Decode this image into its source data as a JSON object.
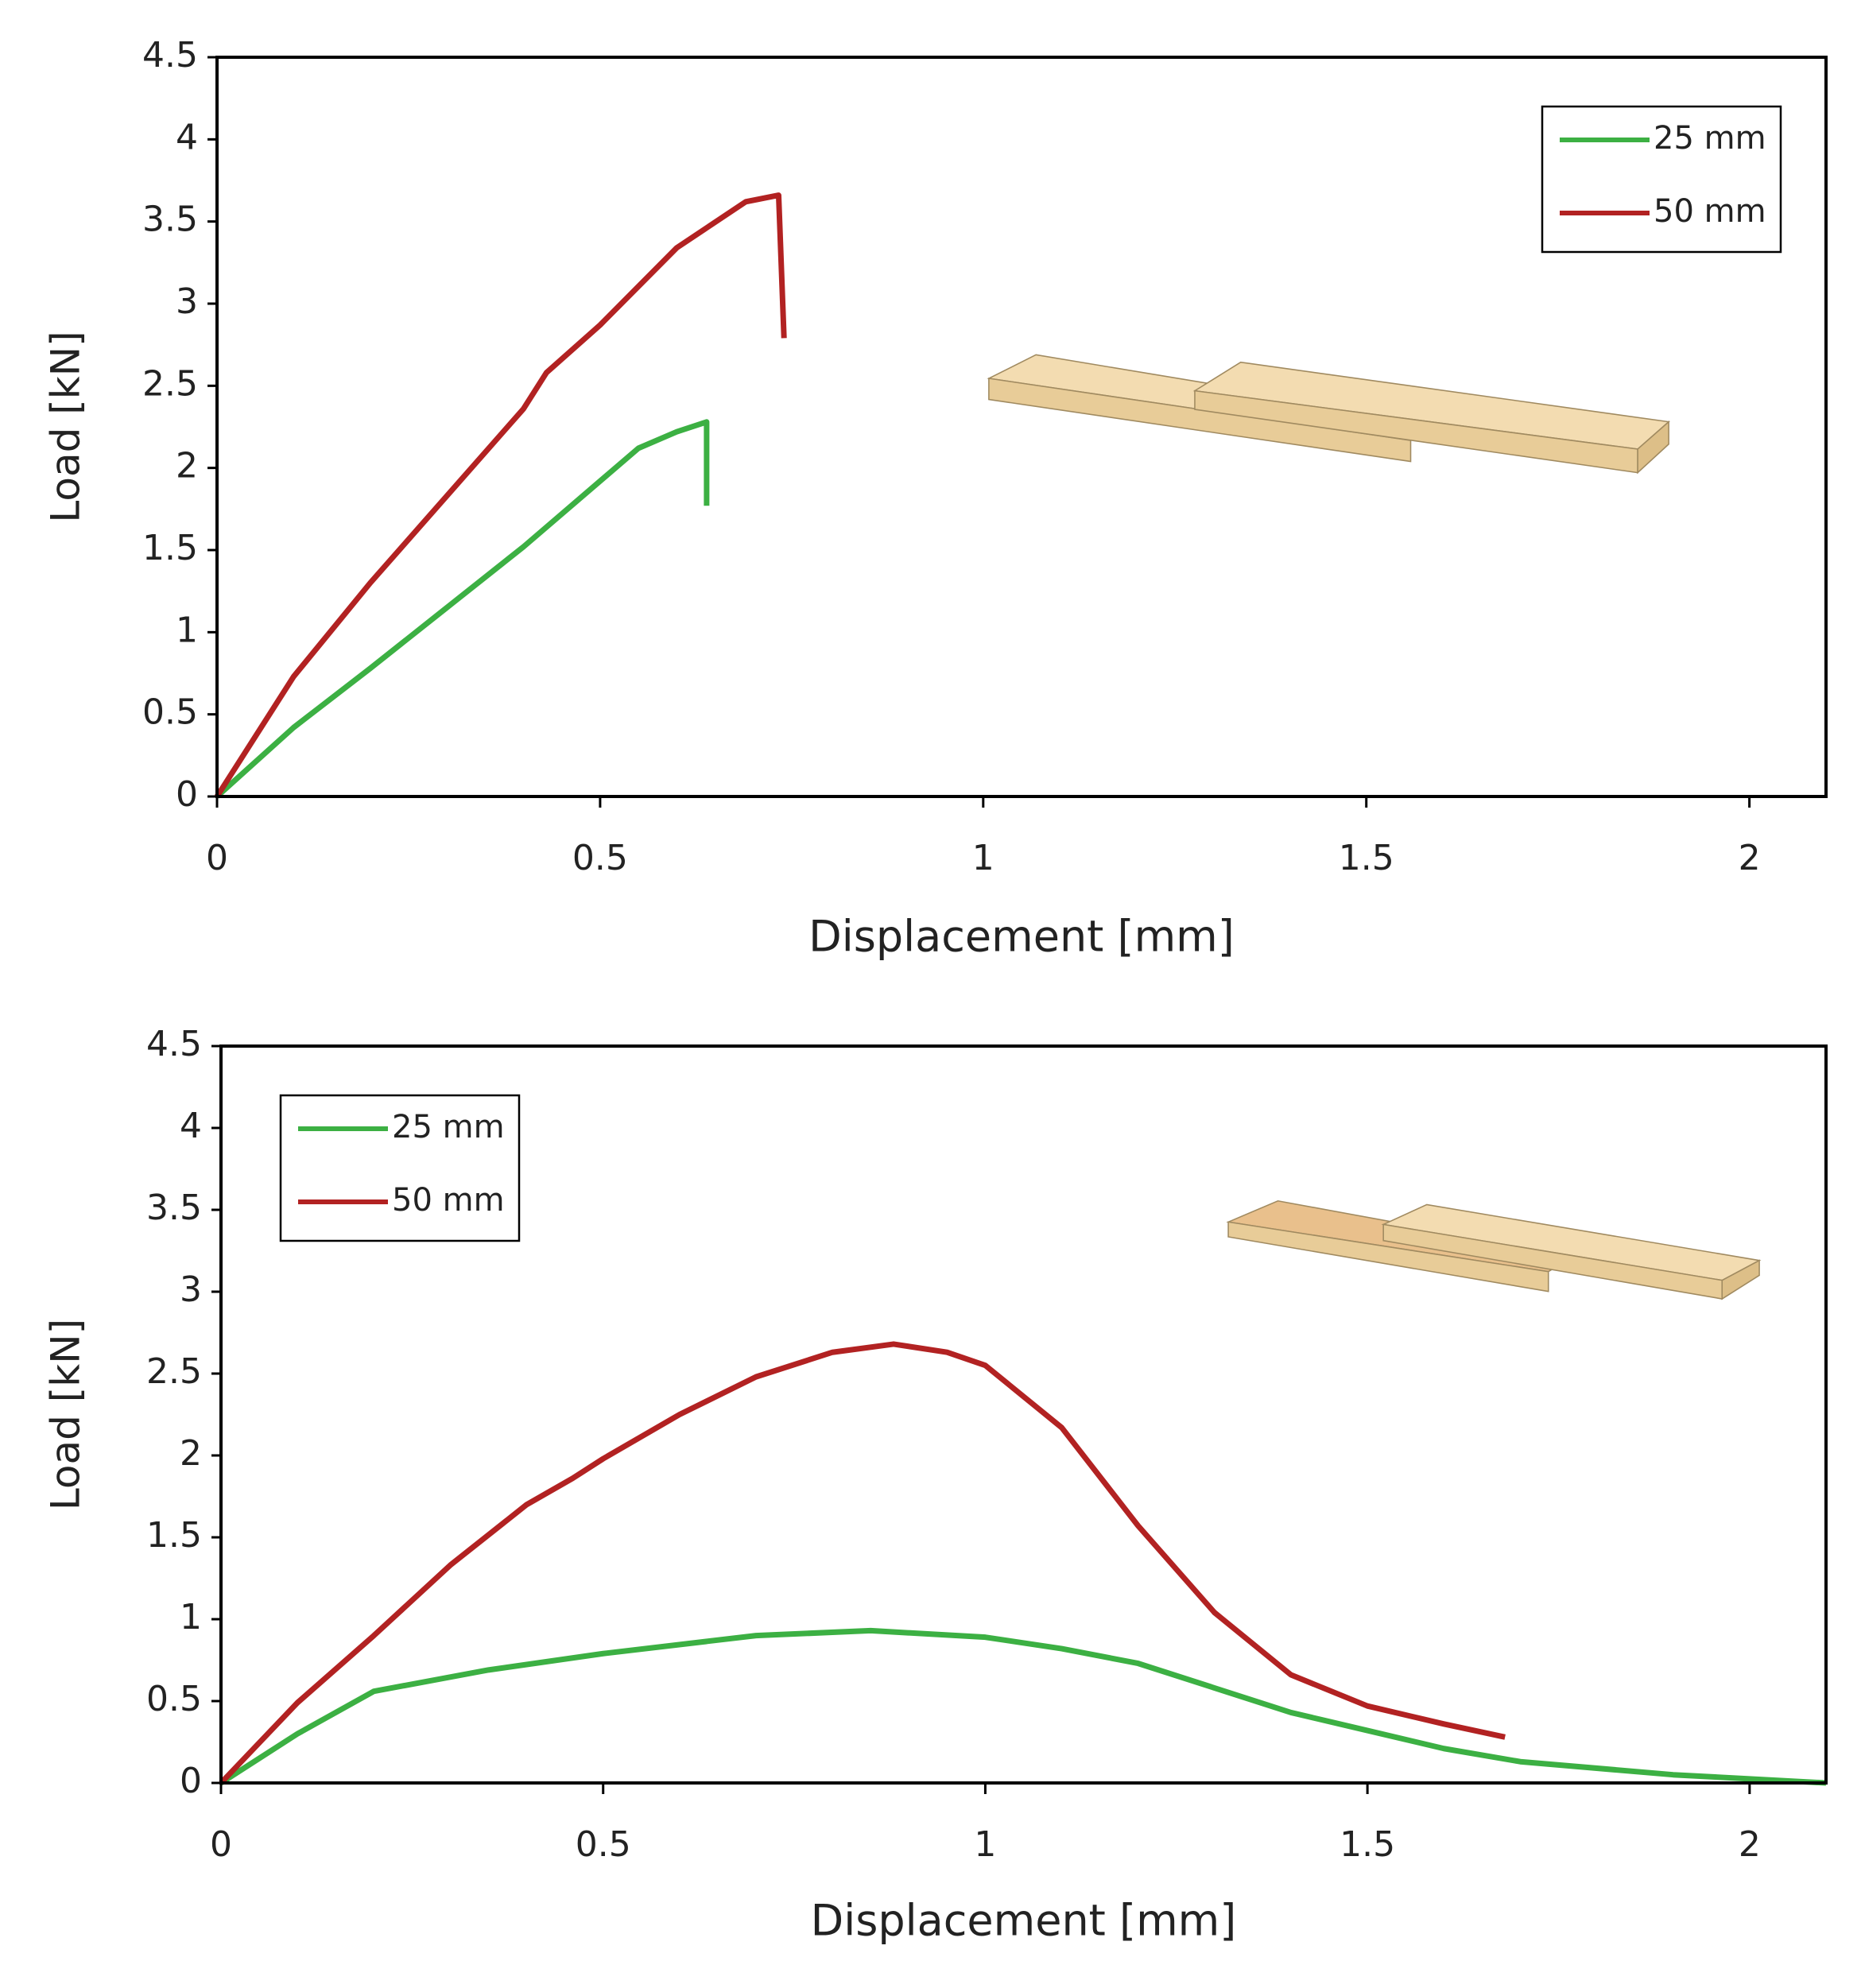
{
  "chart_data": [
    {
      "type": "line",
      "xlabel": "Displacement [mm]",
      "ylabel": "Load [kN]",
      "xlim": [
        0,
        2.1
      ],
      "ylim": [
        0,
        4.5
      ],
      "xticks": [
        0,
        0.5,
        1,
        1.5,
        2
      ],
      "yticks": [
        0,
        0.5,
        1,
        1.5,
        2,
        2.5,
        3,
        3.5,
        4,
        4.5
      ],
      "legend": "upper right",
      "series": [
        {
          "name": "25 mm",
          "color": "#3cb043",
          "x": [
            0,
            0.1,
            0.2,
            0.3,
            0.4,
            0.5,
            0.55,
            0.6,
            0.639,
            0.639
          ],
          "values": [
            0,
            0.42,
            0.78,
            1.15,
            1.52,
            1.92,
            2.12,
            2.22,
            2.28,
            1.77
          ]
        },
        {
          "name": "50 mm",
          "color": "#b22222",
          "x": [
            0,
            0.1,
            0.2,
            0.3,
            0.4,
            0.43,
            0.5,
            0.6,
            0.69,
            0.733,
            0.74
          ],
          "values": [
            0,
            0.73,
            1.3,
            1.83,
            2.36,
            2.58,
            2.87,
            3.34,
            3.62,
            3.66,
            2.79
          ]
        }
      ]
    },
    {
      "type": "line",
      "xlabel": "Displacement [mm]",
      "ylabel": "Load [kN]",
      "xlim": [
        0,
        2.1
      ],
      "ylim": [
        0,
        4.5
      ],
      "xticks": [
        0,
        0.5,
        1,
        1.5,
        2
      ],
      "yticks": [
        0,
        0.5,
        1,
        1.5,
        2,
        2.5,
        3,
        3.5,
        4,
        4.5
      ],
      "legend": "upper left",
      "series": [
        {
          "name": "25 mm",
          "color": "#3cb043",
          "x": [
            0,
            0.1,
            0.2,
            0.35,
            0.5,
            0.7,
            0.85,
            1.0,
            1.1,
            1.2,
            1.3,
            1.4,
            1.5,
            1.6,
            1.7,
            1.9,
            2.1
          ],
          "values": [
            0,
            0.3,
            0.56,
            0.69,
            0.79,
            0.9,
            0.93,
            0.89,
            0.82,
            0.73,
            0.58,
            0.43,
            0.32,
            0.21,
            0.13,
            0.05,
            0
          ]
        },
        {
          "name": "50 mm",
          "color": "#b22222",
          "x": [
            0,
            0.1,
            0.2,
            0.3,
            0.4,
            0.46,
            0.5,
            0.6,
            0.7,
            0.8,
            0.88,
            0.95,
            1.0,
            1.1,
            1.2,
            1.3,
            1.4,
            1.5,
            1.6,
            1.68
          ],
          "values": [
            0,
            0.49,
            0.9,
            1.33,
            1.7,
            1.86,
            1.98,
            2.25,
            2.48,
            2.63,
            2.68,
            2.63,
            2.55,
            2.17,
            1.57,
            1.04,
            0.66,
            0.47,
            0.36,
            0.28
          ]
        }
      ]
    }
  ]
}
